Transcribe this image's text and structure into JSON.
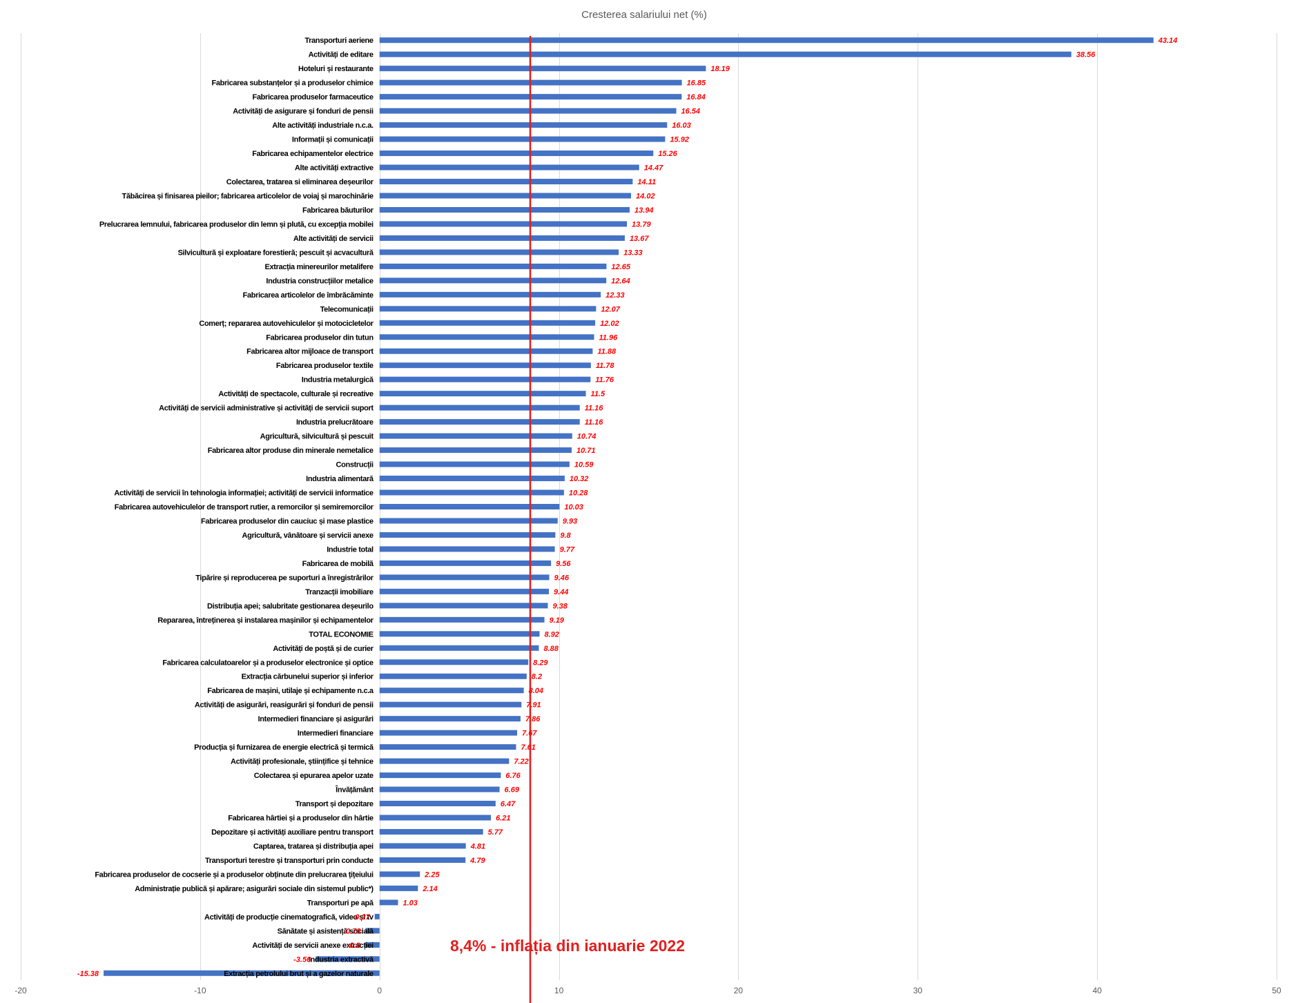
{
  "chart_data": {
    "type": "bar",
    "orientation": "horizontal",
    "title": "Cresterea salariului net (%)",
    "xlabel": "",
    "ylabel": "",
    "xlim": [
      -20,
      50
    ],
    "xticks": [
      -20,
      -10,
      0,
      10,
      20,
      30,
      40,
      50
    ],
    "grid": {
      "vertical": true,
      "horizontal": false
    },
    "bar_color": "#4472c4",
    "data_label_color": "#ff0000",
    "categories": [
      "Transporturi aeriene",
      "Activități de editare",
      "Hoteluri și restaurante",
      "Fabricarea substanțelor și a produselor chimice",
      "Fabricarea produselor farmaceutice",
      "Activități de asigurare și fonduri de pensii",
      "Alte activități industriale n.c.a.",
      "Informații și comunicații",
      "Fabricarea echipamentelor electrice",
      "Alte activități extractive",
      "Colectarea, tratarea si eliminarea deșeurilor",
      "Tăbăcirea și finisarea pieilor; fabricarea articolelor de voiaj și marochinărie",
      "Fabricarea băuturilor",
      "Prelucrarea lemnului, fabricarea produselor din lemn și plută, cu excepția mobilei",
      "Alte activități de servicii",
      "Silvicultură și exploatare forestieră; pescuit și acvacultură",
      "Extracția minereurilor metalifere",
      "Industria construcțiilor metalice",
      "Fabricarea articolelor de îmbrăcăminte",
      "Telecomunicații",
      "Comerț; repararea autovehiculelor și motocicletelor",
      "Fabricarea produselor din tutun",
      "Fabricarea altor mijloace de transport",
      "Fabricarea produselor textile",
      "Industria metalurgică",
      "Activități de spectacole, culturale și recreative",
      "Activități de servicii administrative și activități de servicii suport",
      "Industria prelucrătoare",
      "Agricultură, silvicultură și pescuit",
      "Fabricarea altor produse din minerale nemetalice",
      "Construcții",
      "Industria alimentară",
      "Activități de servicii în tehnologia informației; activități de servicii informatice",
      "Fabricarea autovehiculelor de transport rutier, a remorcilor și semiremorcilor",
      "Fabricarea produselor din cauciuc și mase plastice",
      "Agricultură, vânătoare și servicii anexe",
      "Industrie total",
      "Fabricarea de mobilă",
      "Tipărire și reproducerea pe suporturi a înregistrărilor",
      "Tranzacții imobiliare",
      "Distribuția apei; salubritate gestionarea deșeurilo",
      "Repararea, întreținerea și instalarea mașinilor și echipamentelor",
      "TOTAL ECONOMIE",
      "Activități de poștă și de curier",
      "Fabricarea calculatoarelor și a produselor electronice și optice",
      "Extracția cărbunelui superior și inferior",
      "Fabricarea de mașini, utilaje și echipamente n.c.a",
      "Activități de asigurări, reasigurări și fonduri de pensii",
      "Intermedieri financiare și asigurări",
      "Intermedieri financiare",
      "Producția și furnizarea de energie electrică și termică",
      "Activități profesionale, științifice și tehnice",
      "Colectarea și epurarea apelor uzate",
      "Învățământ",
      "Transport și depozitare",
      "Fabricarea hârtiei și a produselor din hârtie",
      "Depozitare și activități auxiliare pentru transport",
      "Captarea, tratarea și distribuția apei",
      "Transporturi terestre și transporturi prin conducte",
      "Fabricarea produselor de cocserie și a produselor obținute din prelucrarea țițeiului",
      "Administrație publică și apărare; asigurări sociale din sistemul public*)",
      "Transporturi pe apă",
      "Activități de producție cinematografică, video și tv",
      "Sănătate și asistență socială",
      "Activități de servicii anexe extracției",
      "Industria extractivă",
      "Extracția petrolului brut și a gazelor naturale"
    ],
    "values": [
      43.14,
      38.56,
      18.19,
      16.85,
      16.84,
      16.54,
      16.03,
      15.92,
      15.26,
      14.47,
      14.11,
      14.02,
      13.94,
      13.79,
      13.67,
      13.33,
      12.65,
      12.64,
      12.33,
      12.07,
      12.02,
      11.96,
      11.88,
      11.78,
      11.76,
      11.5,
      11.16,
      11.16,
      10.74,
      10.71,
      10.59,
      10.32,
      10.28,
      10.03,
      9.93,
      9.8,
      9.77,
      9.56,
      9.46,
      9.44,
      9.38,
      9.19,
      8.92,
      8.88,
      8.29,
      8.2,
      8.04,
      7.91,
      7.86,
      7.67,
      7.61,
      7.22,
      6.76,
      6.69,
      6.47,
      6.21,
      5.77,
      4.81,
      4.79,
      2.25,
      2.14,
      1.03,
      -0.27,
      -0.78,
      -0.8,
      -3.56,
      -15.38
    ],
    "reference_line": {
      "value": 8.4,
      "color": "#e0201f",
      "label": "8,4% - inflația din ianuarie 2022"
    }
  }
}
